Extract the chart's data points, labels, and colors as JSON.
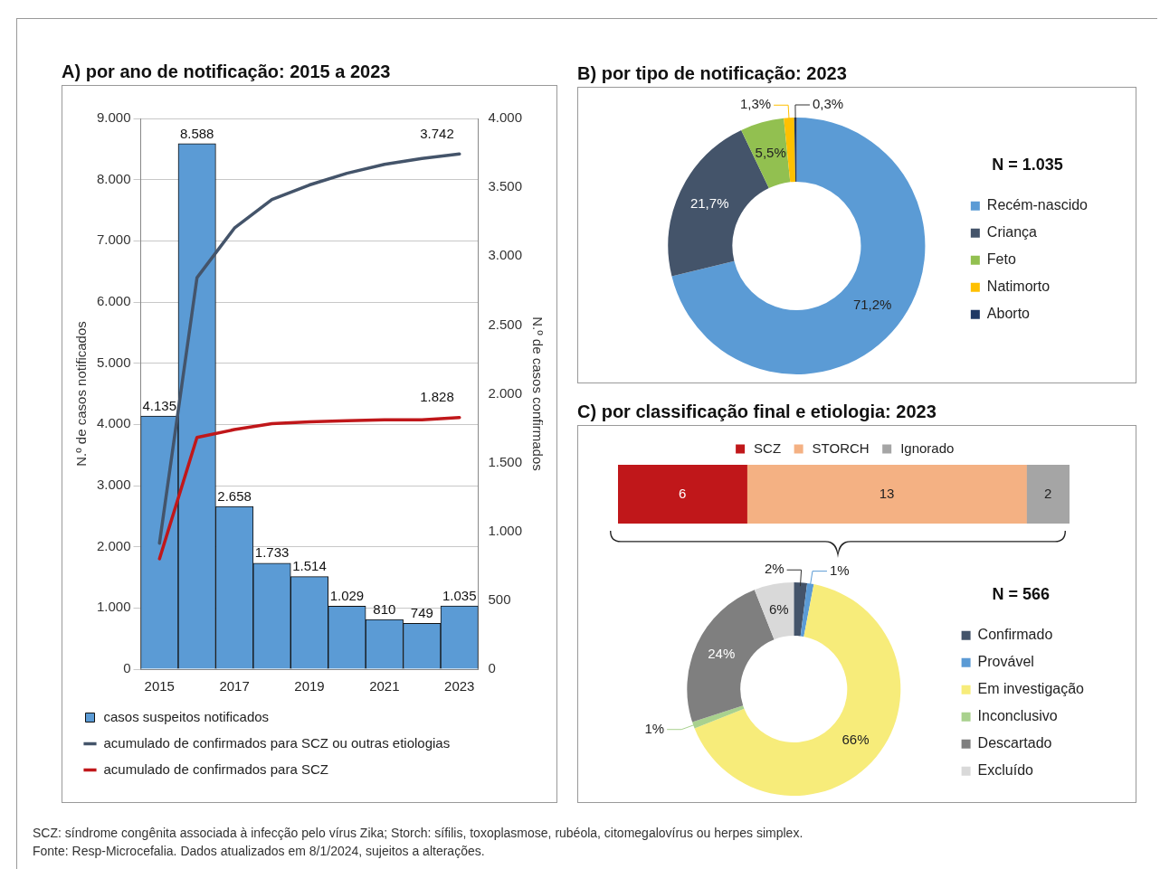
{
  "chart_data": [
    {
      "type": "bar",
      "title": "A) por ano de notificação: 2015 a 2023",
      "ylabel": "N.º de casos notificados",
      "y2label": "N.º de casos confirmados",
      "categories": [
        "2015",
        null,
        "2017",
        null,
        "2019",
        null,
        "2021",
        null,
        "2023"
      ],
      "series": [
        {
          "name": "casos suspeitos notificados",
          "color": "#5b9bd5",
          "values": [
            4135,
            8588,
            2658,
            1733,
            1514,
            1029,
            810,
            749,
            1035
          ],
          "value_labels": [
            "4.135",
            "8.588",
            "2.658",
            "1.733",
            "1.514",
            "1.029",
            "810",
            "749",
            "1.035"
          ]
        },
        {
          "name": "acumulado de confirmados para SCZ ou outras etiologias",
          "type": "line",
          "axis": "y2",
          "color": "#44546a",
          "values": [
            915,
            2843,
            3204,
            3412,
            3517,
            3602,
            3667,
            3710,
            3742
          ],
          "value_labels": [
            null,
            null,
            null,
            null,
            null,
            null,
            null,
            null,
            "3.742"
          ]
        },
        {
          "name": "acumulado de confirmados para SCZ",
          "type": "line",
          "axis": "y2",
          "color": "#c0171a",
          "values": [
            802,
            1683,
            1740,
            1783,
            1797,
            1805,
            1811,
            1811,
            1828
          ],
          "value_labels": [
            null,
            null,
            null,
            null,
            null,
            null,
            null,
            null,
            "1.828"
          ]
        }
      ],
      "ylim": [
        0,
        9000
      ],
      "yticks": [
        0,
        {
          "value": 1000,
          "label": "1.000"
        },
        {
          "value": 2000,
          "label": "2.000"
        },
        {
          "value": 3000,
          "label": "3.000"
        },
        {
          "value": 4000,
          "label": "4.000"
        },
        {
          "value": 5000,
          "label": "5.000"
        },
        {
          "value": 6000,
          "label": "6.000"
        },
        {
          "value": 7000,
          "label": "7.000"
        },
        {
          "value": 8000,
          "label": "8.000"
        },
        {
          "value": 9000,
          "label": "9.000"
        }
      ],
      "y2lim": [
        0,
        4000
      ],
      "y2ticks": [
        0,
        500,
        {
          "value": 1000,
          "label": "1.000"
        },
        {
          "value": 1500,
          "label": "1.500"
        },
        {
          "value": 2000,
          "label": "2.000"
        },
        {
          "value": 2500,
          "label": "2.500"
        },
        {
          "value": 3000,
          "label": "3.000"
        },
        {
          "value": 3500,
          "label": "3.500"
        },
        {
          "value": 4000,
          "label": "4.000"
        }
      ],
      "grid": "y",
      "legend": "bottom",
      "marker": "none",
      "annotations": [
        "SCZ: síndrome congênita associada à infecção pelo vírus Zika; Storch: sífilis, toxoplasmose, rubéola, citomegalovírus ou herpes simplex.",
        "Fonte: Resp-Microcefalia. Dados atualizados em 8/1/2024, sujeitos a alterações."
      ]
    },
    {
      "type": "donut",
      "title": "B) por tipo de notificação: 2023",
      "legend_title": "N = 1.035",
      "legend": "right",
      "categories": [
        "Recém-nascido",
        "Criança",
        "Feto",
        "Natimorto",
        "Aborto"
      ],
      "values": [
        71.2,
        21.7,
        5.5,
        1.3,
        0.3
      ],
      "colors": [
        "#5b9bd5",
        "#44546a",
        "#92c050",
        "#ffc000",
        "#1f3864"
      ],
      "value_labels": [
        "71,2%",
        "21,7%",
        "5,5%",
        "1,3%",
        "0,3%"
      ]
    },
    {
      "type": "bar",
      "title": "C) por classificação final e etiologia: 2023",
      "orientation": "horizontal",
      "stacked": true,
      "categories": [
        null
      ],
      "legend": "top",
      "tick_labels": false,
      "data_labels": true,
      "xlim": [
        0,
        21
      ],
      "series": [
        {
          "name": "SCZ",
          "color": "#c0171a",
          "values": [
            6
          ]
        },
        {
          "name": "STORCH",
          "color": "#f4b183",
          "values": [
            13
          ]
        },
        {
          "name": "Ignorado",
          "color": "#a5a5a5",
          "values": [
            2
          ]
        }
      ]
    },
    {
      "type": "donut",
      "legend_title": "N = 566",
      "legend": "right",
      "categories": [
        "Confirmado",
        "Provável",
        "Em investigação",
        "Inconclusivo",
        "Descartado",
        "Excluído"
      ],
      "values": [
        2,
        1,
        66,
        1,
        24,
        6
      ],
      "colors": [
        "#44546a",
        "#5b9bd5",
        "#f7ec7a",
        "#a9d18e",
        "#7f7f7f",
        "#d9d9d9"
      ],
      "value_labels": [
        "2%",
        "1%",
        "66%",
        "1%",
        "24%",
        "6%"
      ]
    }
  ]
}
